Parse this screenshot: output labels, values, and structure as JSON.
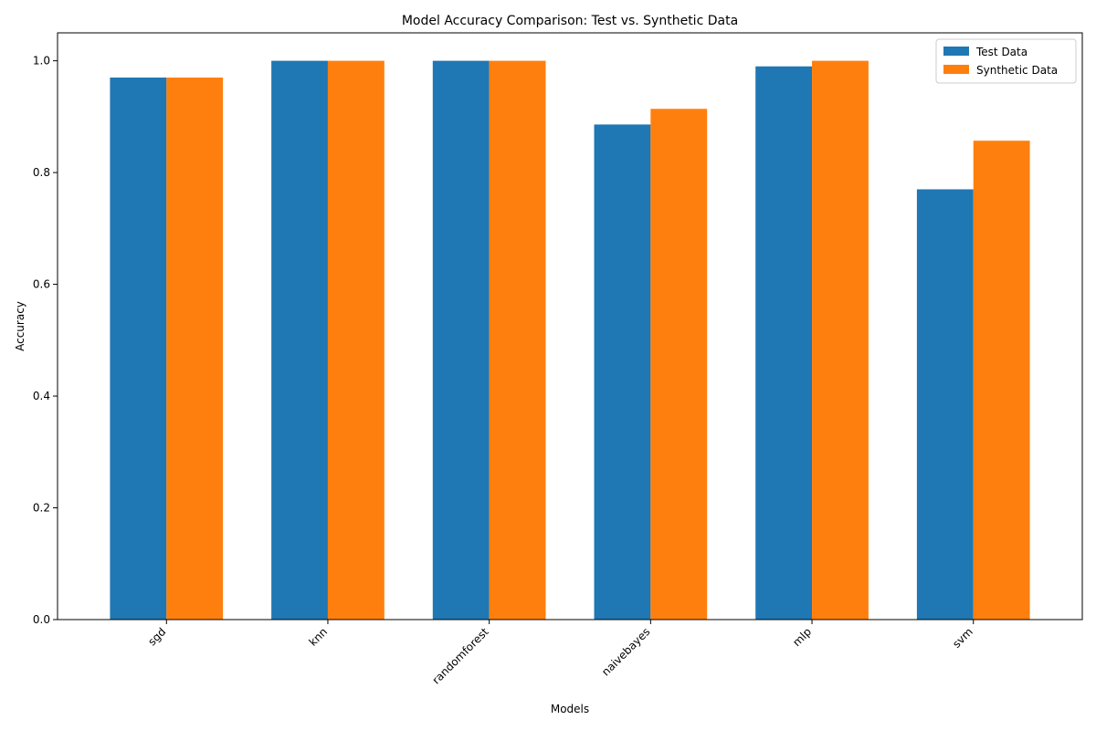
{
  "chart_data": {
    "type": "bar",
    "title": "Model Accuracy Comparison: Test vs. Synthetic Data",
    "xlabel": "Models",
    "ylabel": "Accuracy",
    "categories": [
      "sgd",
      "knn",
      "randomforest",
      "naivebayes",
      "mlp",
      "svm"
    ],
    "series": [
      {
        "name": "Test Data",
        "color": "#1f77b4",
        "values": [
          0.97,
          1.0,
          1.0,
          0.886,
          0.99,
          0.77
        ]
      },
      {
        "name": "Synthetic Data",
        "color": "#ff7f0e",
        "values": [
          0.97,
          1.0,
          1.0,
          0.914,
          1.0,
          0.857
        ]
      }
    ],
    "ylim": [
      0,
      1.05
    ],
    "yticks": [
      "0.0",
      "0.2",
      "0.4",
      "0.6",
      "0.8",
      "1.0"
    ],
    "grid": false,
    "legend_position": "top-right",
    "xtick_rotation": "45deg"
  }
}
